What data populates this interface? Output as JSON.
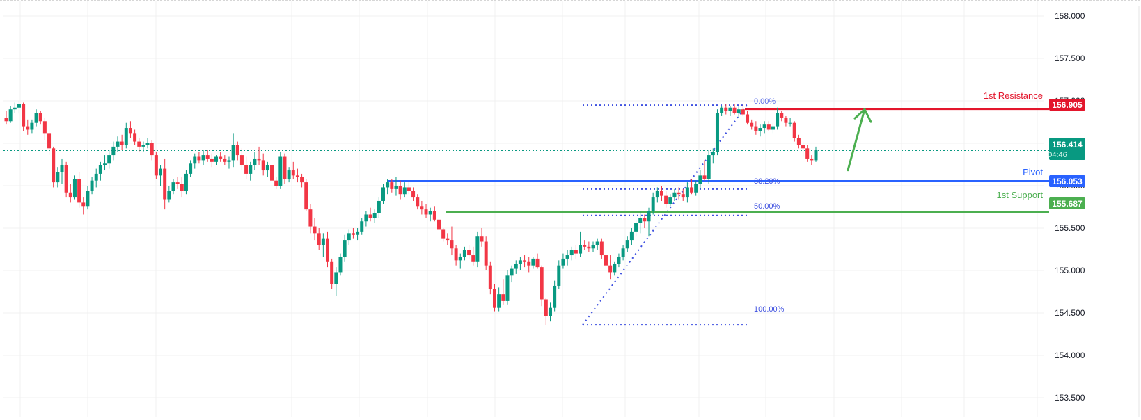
{
  "chart_data": {
    "type": "candlestick",
    "title": "",
    "xlabel": "",
    "ylabel": "",
    "ylim": [
      153.32,
      158.19
    ],
    "y_ticks": [
      "158.000",
      "157.500",
      "157.000",
      "156.500",
      "156.000",
      "155.500",
      "155.000",
      "154.500",
      "154.000",
      "153.500"
    ],
    "y_tick_values": [
      158.0,
      157.5,
      157.0,
      156.5,
      156.0,
      155.5,
      155.0,
      154.5,
      154.0,
      153.5
    ],
    "grid": true,
    "current_price": {
      "value": "156.414",
      "countdown": "04:46",
      "color": "#089981"
    },
    "levels": [
      {
        "name": "1st Resistance",
        "value": 156.905,
        "label": "156.905",
        "color": "#e3162c",
        "x_start": 1070
      },
      {
        "name": "Pivot",
        "value": 156.053,
        "label": "156.053",
        "color": "#2962ff",
        "x_start": 556
      },
      {
        "name": "1st Support",
        "value": 155.687,
        "label": "155.687",
        "color": "#4caf50",
        "x_start": 640
      }
    ],
    "fibonacci": {
      "color": "#3f51e0",
      "x_start": 837,
      "x_end": 1073,
      "high": 156.95,
      "low": 154.36,
      "levels": [
        {
          "ratio": "0.00%",
          "value": 156.95
        },
        {
          "ratio": "38.20%",
          "value": 155.96
        },
        {
          "ratio": "50.00%",
          "value": 155.65
        },
        {
          "ratio": "100.00%",
          "value": 154.36
        }
      ]
    },
    "projection_arrow": {
      "color": "#4caf50",
      "from_price": 156.06,
      "to_price": 156.9,
      "x_from": 1218,
      "x_to": 1242
    },
    "candle_colors": {
      "up": "#089981",
      "down": "#f23645"
    },
    "candles_ohlc": [
      [
        156.8,
        156.88,
        156.72,
        156.76
      ],
      [
        156.76,
        156.94,
        156.74,
        156.9
      ],
      [
        156.9,
        156.98,
        156.86,
        156.92
      ],
      [
        156.92,
        157.0,
        156.85,
        156.96
      ],
      [
        156.96,
        156.98,
        156.64,
        156.7
      ],
      [
        156.7,
        156.78,
        156.6,
        156.66
      ],
      [
        156.66,
        156.78,
        156.62,
        156.74
      ],
      [
        156.74,
        156.9,
        156.7,
        156.86
      ],
      [
        156.86,
        156.88,
        156.72,
        156.76
      ],
      [
        156.76,
        156.8,
        156.54,
        156.62
      ],
      [
        156.62,
        156.66,
        156.36,
        156.44
      ],
      [
        156.44,
        156.46,
        155.98,
        156.04
      ],
      [
        156.04,
        156.22,
        155.98,
        156.16
      ],
      [
        156.16,
        156.32,
        156.02,
        156.24
      ],
      [
        156.24,
        156.28,
        155.86,
        155.92
      ],
      [
        155.92,
        156.02,
        155.8,
        155.86
      ],
      [
        155.86,
        156.12,
        155.84,
        156.08
      ],
      [
        156.08,
        156.16,
        155.74,
        155.8
      ],
      [
        155.8,
        155.86,
        155.66,
        155.76
      ],
      [
        155.76,
        156.0,
        155.72,
        155.94
      ],
      [
        155.94,
        156.1,
        155.9,
        156.06
      ],
      [
        156.06,
        156.2,
        155.98,
        156.14
      ],
      [
        156.14,
        156.28,
        156.06,
        156.24
      ],
      [
        156.24,
        156.36,
        156.18,
        156.26
      ],
      [
        156.26,
        156.42,
        156.2,
        156.36
      ],
      [
        156.36,
        156.52,
        156.3,
        156.46
      ],
      [
        156.46,
        156.58,
        156.4,
        156.52
      ],
      [
        156.52,
        156.6,
        156.42,
        156.48
      ],
      [
        156.48,
        156.74,
        156.44,
        156.68
      ],
      [
        156.68,
        156.76,
        156.56,
        156.62
      ],
      [
        156.62,
        156.66,
        156.48,
        156.52
      ],
      [
        156.52,
        156.56,
        156.4,
        156.46
      ],
      [
        156.46,
        156.52,
        156.4,
        156.48
      ],
      [
        156.48,
        156.56,
        156.44,
        156.5
      ],
      [
        156.5,
        156.54,
        156.3,
        156.36
      ],
      [
        156.36,
        156.4,
        156.08,
        156.12
      ],
      [
        156.12,
        156.24,
        156.0,
        156.2
      ],
      [
        156.2,
        156.32,
        155.72,
        155.84
      ],
      [
        155.84,
        156.0,
        155.8,
        155.94
      ],
      [
        155.94,
        156.08,
        155.9,
        156.04
      ],
      [
        156.04,
        156.1,
        155.96,
        156.02
      ],
      [
        156.02,
        156.1,
        155.86,
        155.94
      ],
      [
        155.94,
        156.18,
        155.9,
        156.14
      ],
      [
        156.14,
        156.3,
        156.1,
        156.26
      ],
      [
        156.26,
        156.38,
        156.2,
        156.34
      ],
      [
        156.34,
        156.4,
        156.26,
        156.3
      ],
      [
        156.3,
        156.42,
        156.24,
        156.36
      ],
      [
        156.36,
        156.42,
        156.28,
        156.32
      ],
      [
        156.32,
        156.38,
        156.22,
        156.28
      ],
      [
        156.28,
        156.36,
        156.24,
        156.34
      ],
      [
        156.34,
        156.4,
        156.28,
        156.32
      ],
      [
        156.32,
        156.36,
        156.24,
        156.28
      ],
      [
        156.28,
        156.34,
        156.2,
        156.3
      ],
      [
        156.3,
        156.62,
        156.22,
        156.48
      ],
      [
        156.48,
        156.52,
        156.3,
        156.36
      ],
      [
        156.36,
        156.44,
        156.18,
        156.24
      ],
      [
        156.24,
        156.34,
        156.08,
        156.14
      ],
      [
        156.14,
        156.28,
        156.06,
        156.24
      ],
      [
        156.24,
        156.4,
        156.18,
        156.32
      ],
      [
        156.32,
        156.46,
        156.24,
        156.3
      ],
      [
        156.3,
        156.38,
        156.12,
        156.18
      ],
      [
        156.18,
        156.28,
        156.1,
        156.24
      ],
      [
        156.24,
        156.3,
        156.02,
        156.06
      ],
      [
        156.06,
        156.1,
        155.96,
        156.0
      ],
      [
        156.0,
        156.4,
        155.96,
        156.34
      ],
      [
        156.34,
        156.38,
        156.02,
        156.08
      ],
      [
        156.08,
        156.22,
        156.04,
        156.18
      ],
      [
        156.18,
        156.28,
        156.08,
        156.12
      ],
      [
        156.12,
        156.2,
        156.04,
        156.1
      ],
      [
        156.1,
        156.14,
        155.98,
        156.04
      ],
      [
        156.04,
        156.08,
        155.7,
        155.72
      ],
      [
        155.72,
        155.78,
        155.44,
        155.52
      ],
      [
        155.52,
        155.62,
        155.36,
        155.44
      ],
      [
        155.44,
        155.5,
        155.24,
        155.3
      ],
      [
        155.3,
        155.44,
        155.16,
        155.38
      ],
      [
        155.38,
        155.46,
        155.04,
        155.1
      ],
      [
        155.1,
        155.14,
        154.78,
        154.84
      ],
      [
        154.84,
        155.04,
        154.7,
        154.98
      ],
      [
        154.98,
        155.2,
        154.94,
        155.16
      ],
      [
        155.16,
        155.42,
        155.1,
        155.36
      ],
      [
        155.36,
        155.48,
        155.3,
        155.44
      ],
      [
        155.44,
        155.5,
        155.38,
        155.42
      ],
      [
        155.42,
        155.5,
        155.36,
        155.46
      ],
      [
        155.46,
        155.62,
        155.42,
        155.58
      ],
      [
        155.58,
        155.7,
        155.52,
        155.66
      ],
      [
        155.66,
        155.74,
        155.58,
        155.62
      ],
      [
        155.62,
        155.72,
        155.56,
        155.68
      ],
      [
        155.68,
        155.86,
        155.62,
        155.82
      ],
      [
        155.82,
        156.02,
        155.78,
        155.98
      ],
      [
        155.98,
        156.08,
        155.9,
        156.04
      ],
      [
        156.04,
        156.08,
        155.92,
        155.96
      ],
      [
        155.96,
        156.1,
        155.88,
        156.0
      ],
      [
        156.0,
        156.06,
        155.84,
        155.9
      ],
      [
        155.9,
        156.04,
        155.86,
        155.98
      ],
      [
        155.98,
        156.06,
        155.9,
        155.94
      ],
      [
        155.94,
        155.98,
        155.82,
        155.86
      ],
      [
        155.86,
        155.9,
        155.72,
        155.76
      ],
      [
        155.76,
        155.82,
        155.66,
        155.72
      ],
      [
        155.72,
        155.78,
        155.62,
        155.66
      ],
      [
        155.66,
        155.74,
        155.58,
        155.7
      ],
      [
        155.7,
        155.76,
        155.58,
        155.6
      ],
      [
        155.6,
        155.64,
        155.44,
        155.48
      ],
      [
        155.48,
        155.5,
        155.34,
        155.38
      ],
      [
        155.38,
        155.44,
        155.3,
        155.36
      ],
      [
        155.36,
        155.52,
        155.18,
        155.26
      ],
      [
        155.26,
        155.3,
        155.06,
        155.12
      ],
      [
        155.12,
        155.2,
        155.02,
        155.16
      ],
      [
        155.16,
        155.28,
        155.12,
        155.24
      ],
      [
        155.24,
        155.3,
        155.14,
        155.18
      ],
      [
        155.18,
        155.28,
        155.06,
        155.1
      ],
      [
        155.1,
        155.46,
        155.04,
        155.4
      ],
      [
        155.4,
        155.5,
        155.28,
        155.34
      ],
      [
        155.34,
        155.4,
        155.0,
        155.06
      ],
      [
        155.06,
        155.1,
        154.72,
        154.78
      ],
      [
        154.78,
        154.84,
        154.52,
        154.56
      ],
      [
        154.56,
        154.8,
        154.52,
        154.72
      ],
      [
        154.72,
        154.9,
        154.6,
        154.64
      ],
      [
        154.64,
        155.0,
        154.6,
        154.94
      ],
      [
        154.94,
        155.06,
        154.86,
        155.02
      ],
      [
        155.02,
        155.12,
        154.96,
        155.08
      ],
      [
        155.08,
        155.16,
        155.0,
        155.12
      ],
      [
        155.12,
        155.18,
        155.04,
        155.1
      ],
      [
        155.1,
        155.16,
        154.98,
        155.06
      ],
      [
        155.06,
        155.16,
        155.02,
        155.14
      ],
      [
        155.14,
        155.2,
        155.02,
        155.04
      ],
      [
        155.04,
        155.06,
        154.58,
        154.66
      ],
      [
        154.66,
        154.68,
        154.36,
        154.46
      ],
      [
        154.46,
        154.62,
        154.4,
        154.56
      ],
      [
        154.56,
        154.88,
        154.52,
        154.82
      ],
      [
        154.82,
        155.12,
        154.78,
        155.06
      ],
      [
        155.06,
        155.2,
        155.02,
        155.14
      ],
      [
        155.14,
        155.24,
        155.06,
        155.18
      ],
      [
        155.18,
        155.28,
        155.12,
        155.24
      ],
      [
        155.24,
        155.3,
        155.14,
        155.2
      ],
      [
        155.2,
        155.46,
        155.16,
        155.3
      ],
      [
        155.3,
        155.36,
        155.24,
        155.28
      ],
      [
        155.28,
        155.34,
        155.22,
        155.26
      ],
      [
        155.26,
        155.34,
        155.22,
        155.3
      ],
      [
        155.3,
        155.38,
        155.24,
        155.34
      ],
      [
        155.34,
        155.38,
        155.14,
        155.18
      ],
      [
        155.18,
        155.22,
        155.02,
        155.06
      ],
      [
        155.06,
        155.18,
        154.9,
        154.98
      ],
      [
        154.98,
        155.1,
        154.94,
        155.08
      ],
      [
        155.08,
        155.2,
        155.04,
        155.16
      ],
      [
        155.16,
        155.3,
        155.12,
        155.26
      ],
      [
        155.26,
        155.4,
        155.22,
        155.36
      ],
      [
        155.36,
        155.5,
        155.3,
        155.46
      ],
      [
        155.46,
        155.6,
        155.4,
        155.56
      ],
      [
        155.56,
        155.7,
        155.44,
        155.62
      ],
      [
        155.62,
        155.66,
        155.5,
        155.58
      ],
      [
        155.58,
        155.74,
        155.4,
        155.7
      ],
      [
        155.7,
        155.92,
        155.66,
        155.86
      ],
      [
        155.86,
        155.98,
        155.8,
        155.94
      ],
      [
        155.94,
        156.0,
        155.82,
        155.88
      ],
      [
        155.88,
        155.94,
        155.74,
        155.78
      ],
      [
        155.78,
        155.9,
        155.76,
        155.86
      ],
      [
        155.86,
        155.96,
        155.82,
        155.92
      ],
      [
        155.92,
        155.98,
        155.84,
        155.9
      ],
      [
        155.9,
        155.96,
        155.82,
        155.86
      ],
      [
        155.86,
        156.04,
        155.8,
        155.98
      ],
      [
        155.98,
        156.08,
        155.9,
        155.92
      ],
      [
        155.92,
        156.06,
        155.88,
        156.02
      ],
      [
        156.02,
        156.18,
        155.96,
        156.12
      ],
      [
        156.12,
        156.3,
        156.06,
        156.08
      ],
      [
        156.08,
        156.42,
        156.02,
        156.36
      ],
      [
        156.36,
        156.44,
        156.26,
        156.4
      ],
      [
        156.4,
        156.9,
        156.36,
        156.86
      ],
      [
        156.86,
        156.94,
        156.82,
        156.92
      ],
      [
        156.92,
        156.96,
        156.84,
        156.88
      ],
      [
        156.88,
        156.94,
        156.82,
        156.92
      ],
      [
        156.92,
        156.96,
        156.84,
        156.86
      ],
      [
        156.86,
        156.94,
        156.8,
        156.9
      ],
      [
        156.9,
        156.96,
        156.82,
        156.84
      ],
      [
        156.84,
        156.88,
        156.72,
        156.74
      ],
      [
        156.74,
        156.78,
        156.66,
        156.7
      ],
      [
        156.7,
        156.76,
        156.6,
        156.64
      ],
      [
        156.64,
        156.72,
        156.58,
        156.68
      ],
      [
        156.68,
        156.76,
        156.62,
        156.72
      ],
      [
        156.72,
        156.76,
        156.64,
        156.66
      ],
      [
        156.66,
        156.74,
        156.62,
        156.7
      ],
      [
        156.7,
        156.92,
        156.66,
        156.86
      ],
      [
        156.86,
        156.88,
        156.76,
        156.8
      ],
      [
        156.8,
        156.82,
        156.7,
        156.74
      ],
      [
        156.74,
        156.8,
        156.7,
        156.74
      ],
      [
        156.74,
        156.76,
        156.52,
        156.56
      ],
      [
        156.56,
        156.6,
        156.44,
        156.48
      ],
      [
        156.48,
        156.52,
        156.34,
        156.44
      ],
      [
        156.44,
        156.48,
        156.28,
        156.32
      ],
      [
        156.32,
        156.36,
        156.24,
        156.3
      ],
      [
        156.3,
        156.46,
        156.28,
        156.42
      ]
    ]
  },
  "price_axis": {
    "ticks": [
      "158.000",
      "157.500",
      "157.000",
      "156.500",
      "156.000",
      "155.500",
      "155.000",
      "154.500",
      "154.000",
      "153.500"
    ]
  },
  "labels": {
    "resistance_text": "1st Resistance",
    "resistance_value": "156.905",
    "pivot_text": "Pivot",
    "pivot_value": "156.053",
    "support_text": "1st Support",
    "support_value": "155.687",
    "current_value": "156.414",
    "countdown": "04:46",
    "fib_0": "0.00%",
    "fib_382": "38.20%",
    "fib_50": "50.00%",
    "fib_100": "100.00%"
  }
}
